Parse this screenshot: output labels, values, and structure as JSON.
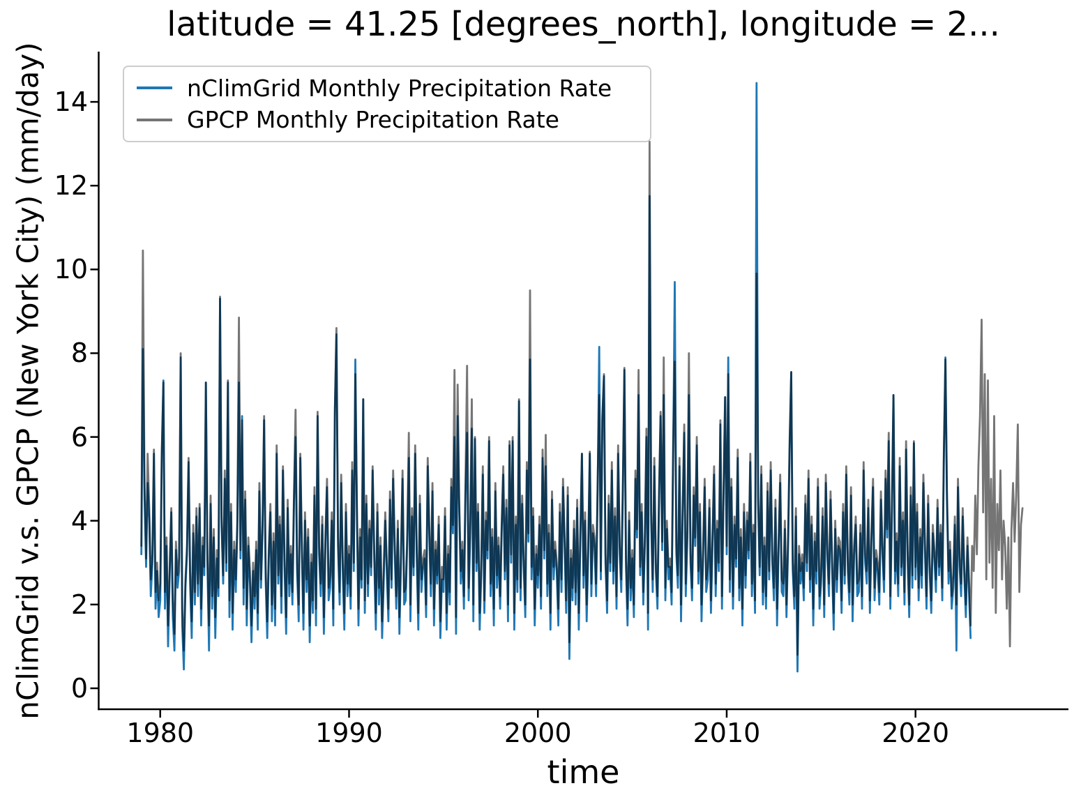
{
  "title": "latitude = 41.25 [degrees_north], longitude = 2...",
  "xlabel": "time",
  "ylabel": "nClimGrid v.s. GPCP (New York City) (mm/day)",
  "legend": [
    {
      "label": "nClimGrid Monthly Precipitation Rate",
      "color": "#1f77b4"
    },
    {
      "label": "GPCP Monthly Precipitation Rate",
      "color": "#757575"
    }
  ],
  "chart_data": {
    "type": "line",
    "title": "latitude = 41.25 [degrees_north], longitude = 2...",
    "xlabel": "time",
    "ylabel": "nClimGrid v.s. GPCP (New York City) (mm/day)",
    "xlim": [
      1976.74,
      2028.1
    ],
    "ylim": [
      -0.5,
      15.2
    ],
    "xticks": [
      1980,
      1990,
      2000,
      2010,
      2020
    ],
    "yticks": [
      0,
      2,
      4,
      6,
      8,
      10,
      12,
      14
    ],
    "grid": false,
    "legend_position": "upper left",
    "x_start_year": 1979,
    "x_step_months": 1,
    "series": [
      {
        "name": "nClimGrid Monthly Precipitation Rate",
        "color": "#1f77b4",
        "values": [
          3.2,
          8.1,
          4.6,
          2.9,
          4.9,
          4.0,
          2.2,
          3.0,
          5.6,
          1.9,
          2.8,
          1.7,
          2.1,
          5.5,
          7.35,
          1.9,
          3.4,
          1.0,
          2.7,
          4.2,
          1.7,
          0.9,
          3.3,
          2.4,
          2.8,
          7.9,
          1.5,
          0.45,
          2.4,
          3.2,
          5.4,
          2.5,
          1.2,
          3.7,
          2.0,
          4.1,
          2.2,
          4.3,
          1.5,
          3.4,
          2.7,
          7.3,
          3.0,
          0.9,
          4.4,
          1.9,
          3.6,
          1.2,
          3.1,
          2.2,
          9.3,
          3.9,
          2.5,
          5.0,
          2.8,
          7.3,
          1.7,
          4.2,
          1.4,
          3.3,
          2.3,
          3.8,
          7.3,
          3.1,
          6.5,
          2.0,
          4.5,
          1.5,
          3.4,
          2.5,
          1.1,
          2.8,
          1.9,
          3.3,
          1.4,
          4.7,
          2.4,
          3.7,
          6.4,
          2.6,
          1.2,
          3.1,
          4.2,
          1.6,
          3.5,
          1.5,
          5.6,
          2.5,
          3.9,
          1.8,
          5.2,
          2.9,
          1.3,
          4.3,
          2.2,
          3.2,
          2.0,
          4.4,
          6.0,
          2.8,
          1.6,
          5.5,
          3.3,
          1.4,
          4.0,
          2.3,
          3.6,
          1.1,
          3.0,
          1.8,
          4.6,
          1.5,
          6.5,
          3.2,
          2.2,
          3.9,
          1.3,
          3.5,
          4.8,
          2.1,
          2.4,
          4.0,
          1.5,
          6.6,
          8.45,
          3.4,
          2.0,
          4.9,
          2.8,
          1.4,
          4.2,
          2.2,
          3.2,
          1.9,
          5.2,
          2.8,
          7.85,
          4.1,
          1.5,
          3.6,
          2.4,
          6.9,
          1.8,
          4.4,
          2.2,
          3.8,
          2.7,
          5.2,
          3.1,
          1.4,
          4.2,
          2.0,
          3.4,
          1.2,
          2.5,
          4.0,
          2.8,
          1.6,
          4.5,
          2.4,
          5.0,
          3.3,
          1.9,
          3.8,
          1.3,
          3.0,
          5.0,
          2.0,
          2.1,
          3.5,
          5.5,
          1.6,
          4.1,
          2.7,
          5.6,
          3.2,
          1.4,
          4.4,
          2.3,
          2.9,
          3.1,
          1.7,
          5.3,
          3.6,
          2.2,
          4.7,
          1.5,
          3.3,
          2.5,
          3.9,
          1.2,
          2.6,
          2.3,
          4.1,
          1.4,
          3.2,
          2.0,
          4.8,
          3.7,
          6.0,
          1.3,
          6.5,
          4.3,
          2.5,
          3.3,
          1.9,
          4.6,
          6.1,
          2.1,
          3.7,
          6.2,
          1.6,
          5.95,
          2.8,
          4.2,
          1.4,
          2.7,
          5.1,
          1.8,
          4.0,
          3.1,
          5.9,
          2.2,
          3.6,
          1.5,
          4.7,
          2.4,
          3.4,
          1.9,
          3.7,
          5.1,
          2.6,
          4.3,
          1.6,
          5.8,
          3.0,
          5.9,
          1.4,
          3.9,
          2.3,
          6.85,
          2.1,
          4.4,
          2.9,
          1.7,
          5.2,
          3.5,
          7.85,
          2.6,
          4.1,
          1.5,
          3.2,
          2.4,
          3.9,
          1.9,
          5.5,
          3.1,
          5.3,
          2.2,
          3.7,
          1.4,
          4.5,
          2.6,
          3.3,
          2.8,
          1.5,
          4.2,
          2.3,
          4.8,
          3.4,
          1.8,
          4.6,
          0.7,
          3.1,
          2.1,
          3.8,
          2.0,
          4.3,
          1.4,
          3.5,
          5.6,
          2.4,
          4.0,
          1.6,
          3.2,
          5.6,
          2.2,
          3.7,
          3.4,
          2.2,
          4.8,
          8.15,
          2.6,
          6.4,
          7.45,
          3.0,
          1.8,
          4.4,
          2.8,
          5.2,
          2.5,
          4.1,
          1.9,
          5.6,
          3.2,
          2.3,
          4.7,
          7.6,
          2.9,
          1.5,
          4.0,
          2.1,
          3.1,
          1.7,
          5.0,
          3.6,
          7.0,
          2.7,
          4.2,
          2.0,
          3.4,
          6.0,
          1.4,
          11.75,
          4.0,
          2.3,
          5.3,
          2.8,
          1.9,
          4.5,
          6.5,
          3.3,
          7.0,
          2.1,
          3.8,
          2.6,
          2.9,
          2.0,
          5.7,
          9.7,
          3.2,
          2.4,
          5.3,
          1.6,
          4.1,
          6.1,
          2.2,
          3.6,
          7.0,
          3.0,
          2.1,
          4.6,
          3.4,
          5.8,
          2.5,
          4.2,
          1.6,
          3.1,
          4.8,
          2.3,
          2.6,
          4.3,
          1.8,
          3.5,
          5.1,
          2.2,
          3.8,
          2.8,
          6.3,
          1.9,
          4.6,
          6.95,
          3.2,
          7.9,
          2.3,
          4.8,
          1.9,
          3.9,
          2.9,
          5.5,
          2.1,
          3.6,
          1.5,
          4.2,
          2.4,
          4.0,
          3.1,
          5.4,
          2.2,
          3.7,
          1.8,
          14.45,
          4.4,
          2.7,
          5.1,
          2.0,
          3.4,
          1.9,
          4.7,
          2.6,
          5.2,
          3.0,
          2.1,
          4.3,
          1.5,
          3.3,
          4.9,
          2.3,
          2.2,
          3.8,
          1.7,
          3.4,
          5.7,
          7.55,
          2.8,
          1.9,
          4.1,
          0.4,
          3.2,
          2.5,
          3.0,
          2.1,
          4.4,
          2.8,
          5.0,
          2.3,
          3.9,
          1.5,
          3.5,
          2.5,
          4.8,
          1.9,
          2.5,
          4.1,
          1.7,
          4.9,
          3.1,
          2.2,
          4.5,
          2.9,
          1.4,
          3.8,
          2.3,
          3.4,
          3.3,
          1.8,
          4.2,
          2.5,
          5.1,
          2.8,
          2.0,
          4.6,
          1.6,
          3.2,
          3.9,
          2.2,
          2.3,
          3.7,
          1.9,
          5.2,
          3.0,
          2.5,
          4.3,
          1.8,
          3.5,
          4.8,
          2.1,
          3.1,
          2.8,
          2.0,
          4.5,
          3.2,
          2.3,
          5.0,
          3.6,
          5.9,
          1.9,
          4.2,
          7.0,
          2.5,
          3.5,
          2.2,
          5.3,
          2.7,
          4.0,
          2.0,
          5.7,
          3.1,
          1.7,
          4.6,
          2.4,
          5.85,
          2.6,
          4.2,
          2.1,
          3.6,
          2.4,
          4.9,
          3.3,
          1.9,
          4.4,
          2.8,
          1.8,
          3.7,
          3.1,
          2.3,
          4.3,
          2.7,
          3.7,
          2.1,
          5.4,
          7.9,
          4.5,
          2.5,
          3.3,
          1.9,
          2.4,
          3.9,
          0.9,
          4.8,
          2.9,
          2.2,
          4.1,
          2.7,
          1.7,
          3.4,
          2.3,
          1.2
        ]
      },
      {
        "name": "GPCP Monthly Precipitation Rate",
        "color": "#757575",
        "values": [
          3.4,
          10.45,
          4.9,
          3.1,
          5.6,
          4.3,
          2.6,
          3.2,
          5.7,
          2.3,
          3.0,
          2.1,
          2.5,
          5.7,
          7.3,
          2.3,
          3.6,
          1.5,
          2.9,
          4.3,
          2.1,
          1.3,
          3.5,
          2.7,
          3.1,
          8.0,
          1.9,
          0.9,
          2.6,
          3.4,
          5.5,
          2.8,
          1.6,
          3.9,
          2.3,
          4.3,
          2.5,
          4.4,
          1.9,
          3.6,
          2.9,
          7.3,
          3.2,
          1.5,
          4.6,
          2.2,
          3.8,
          1.7,
          3.3,
          2.4,
          9.35,
          4.1,
          2.7,
          5.2,
          3.0,
          7.35,
          2.1,
          4.4,
          1.8,
          3.5,
          2.6,
          4.0,
          8.85,
          3.3,
          6.4,
          2.4,
          4.7,
          1.9,
          3.6,
          2.8,
          1.5,
          3.0,
          2.2,
          3.5,
          1.8,
          4.9,
          2.6,
          3.9,
          6.5,
          2.9,
          1.6,
          3.3,
          4.4,
          2.0,
          3.7,
          1.9,
          5.8,
          2.7,
          4.1,
          2.2,
          5.3,
          3.1,
          1.7,
          4.5,
          2.5,
          3.4,
          2.3,
          4.6,
          6.65,
          3.0,
          2.0,
          5.6,
          3.5,
          1.8,
          4.2,
          2.6,
          3.8,
          1.5,
          3.2,
          2.1,
          4.8,
          1.9,
          6.6,
          3.4,
          2.5,
          4.1,
          1.7,
          3.7,
          5.0,
          2.4,
          2.7,
          4.2,
          1.9,
          6.7,
          8.6,
          3.6,
          2.3,
          5.1,
          3.0,
          1.8,
          4.4,
          2.5,
          3.4,
          2.2,
          5.4,
          3.0,
          7.5,
          4.3,
          1.9,
          3.8,
          2.6,
          6.9,
          2.1,
          4.6,
          2.5,
          4.0,
          2.9,
          5.3,
          3.3,
          1.8,
          4.4,
          2.4,
          3.6,
          1.6,
          2.8,
          4.2,
          3.0,
          1.9,
          4.7,
          2.6,
          5.2,
          3.5,
          2.2,
          4.0,
          1.7,
          3.2,
          5.2,
          2.3,
          2.4,
          3.7,
          6.1,
          2.0,
          4.3,
          2.9,
          5.8,
          3.4,
          1.8,
          4.6,
          2.6,
          3.1,
          3.3,
          2.0,
          5.5,
          3.8,
          2.5,
          4.9,
          1.9,
          3.5,
          2.7,
          4.1,
          1.6,
          2.9,
          2.6,
          4.3,
          1.8,
          3.4,
          2.3,
          5.0,
          3.9,
          7.6,
          1.7,
          7.25,
          4.5,
          2.8,
          3.5,
          2.2,
          4.8,
          7.7,
          2.4,
          3.9,
          6.9,
          2.0,
          6.0,
          3.0,
          4.4,
          1.8,
          2.9,
          5.3,
          2.1,
          4.2,
          3.3,
          6.0,
          2.5,
          3.8,
          1.9,
          4.9,
          2.7,
          3.6,
          2.2,
          3.9,
          5.3,
          2.8,
          4.5,
          2.0,
          5.9,
          3.2,
          6.0,
          1.8,
          4.1,
          2.6,
          6.9,
          2.4,
          4.6,
          3.1,
          2.0,
          5.4,
          3.7,
          9.5,
          2.9,
          4.3,
          1.9,
          3.4,
          2.7,
          4.1,
          2.2,
          5.7,
          3.3,
          6.05,
          2.5,
          3.9,
          1.8,
          4.7,
          2.9,
          3.5,
          3.0,
          1.9,
          4.4,
          2.6,
          5.0,
          3.6,
          2.1,
          4.8,
          1.1,
          3.3,
          2.4,
          4.0,
          2.3,
          4.5,
          1.8,
          3.7,
          5.6,
          2.7,
          4.2,
          2.0,
          3.4,
          5.65,
          2.5,
          3.9,
          3.6,
          2.5,
          5.0,
          7.0,
          2.8,
          6.5,
          7.5,
          3.2,
          2.1,
          4.6,
          3.0,
          5.4,
          2.8,
          4.3,
          2.2,
          5.8,
          3.4,
          2.6,
          4.9,
          7.65,
          3.1,
          1.9,
          4.2,
          2.4,
          3.3,
          2.0,
          5.2,
          3.8,
          7.6,
          2.9,
          4.4,
          2.3,
          3.6,
          6.2,
          1.8,
          13.05,
          4.2,
          2.6,
          5.5,
          3.0,
          2.2,
          4.7,
          6.6,
          3.5,
          7.9,
          2.4,
          4.0,
          2.9,
          3.1,
          2.3,
          5.9,
          7.8,
          3.4,
          2.7,
          5.5,
          2.0,
          4.3,
          6.3,
          2.5,
          3.8,
          8.0,
          3.2,
          2.4,
          4.8,
          3.6,
          6.0,
          2.8,
          4.4,
          2.0,
          3.3,
          5.0,
          2.6,
          2.9,
          4.5,
          2.1,
          3.7,
          5.3,
          2.5,
          4.0,
          3.0,
          6.4,
          2.2,
          4.8,
          6.95,
          3.4,
          7.5,
          2.6,
          5.0,
          2.2,
          4.1,
          3.1,
          5.7,
          2.4,
          3.8,
          1.9,
          4.4,
          2.7,
          4.2,
          3.3,
          5.6,
          2.5,
          3.9,
          2.1,
          9.9,
          4.6,
          2.9,
          5.3,
          2.3,
          3.6,
          2.2,
          4.9,
          2.8,
          5.4,
          3.2,
          2.4,
          4.5,
          1.9,
          3.5,
          5.1,
          2.6,
          2.5,
          4.0,
          2.0,
          3.6,
          5.9,
          7.55,
          3.0,
          2.2,
          4.3,
          0.8,
          3.4,
          2.8,
          3.2,
          2.4,
          4.6,
          3.0,
          5.2,
          2.6,
          4.1,
          1.9,
          3.7,
          2.8,
          5.0,
          2.2,
          2.8,
          4.3,
          2.0,
          5.1,
          3.3,
          2.5,
          4.7,
          3.1,
          1.8,
          4.0,
          2.6,
          3.6,
          3.5,
          2.1,
          4.4,
          2.7,
          5.3,
          3.0,
          2.3,
          4.8,
          2.0,
          3.4,
          4.1,
          2.5,
          2.6,
          3.9,
          2.2,
          5.4,
          3.2,
          2.8,
          4.5,
          2.1,
          3.7,
          5.0,
          2.4,
          3.3,
          3.0,
          2.3,
          4.7,
          3.4,
          2.6,
          5.2,
          3.8,
          6.1,
          2.2,
          4.4,
          7.0,
          2.8,
          3.7,
          2.5,
          5.5,
          2.9,
          4.2,
          2.3,
          5.9,
          3.3,
          2.0,
          4.8,
          2.7,
          5.9,
          2.9,
          4.4,
          2.4,
          3.8,
          2.7,
          5.1,
          3.5,
          2.2,
          4.6,
          3.0,
          2.1,
          3.9,
          3.3,
          2.6,
          4.5,
          2.9,
          3.9,
          2.4,
          5.6,
          7.85,
          4.7,
          2.8,
          3.5,
          2.2,
          2.7,
          4.1,
          2.0,
          5.0,
          3.1,
          2.5,
          4.3,
          2.9,
          2.0,
          3.6,
          2.6,
          1.5,
          3.4,
          2.8,
          4.6,
          3.2,
          5.3,
          6.5,
          8.8,
          4.2,
          7.5,
          2.6,
          7.35,
          3.0,
          5.0,
          2.4,
          6.5,
          1.8,
          4.4,
          3.3,
          5.2,
          2.6,
          4.0,
          3.4,
          1.9,
          3.6,
          1.0,
          3.8,
          4.9,
          3.5,
          4.6,
          6.3,
          2.3,
          3.9,
          4.3
        ]
      }
    ]
  }
}
